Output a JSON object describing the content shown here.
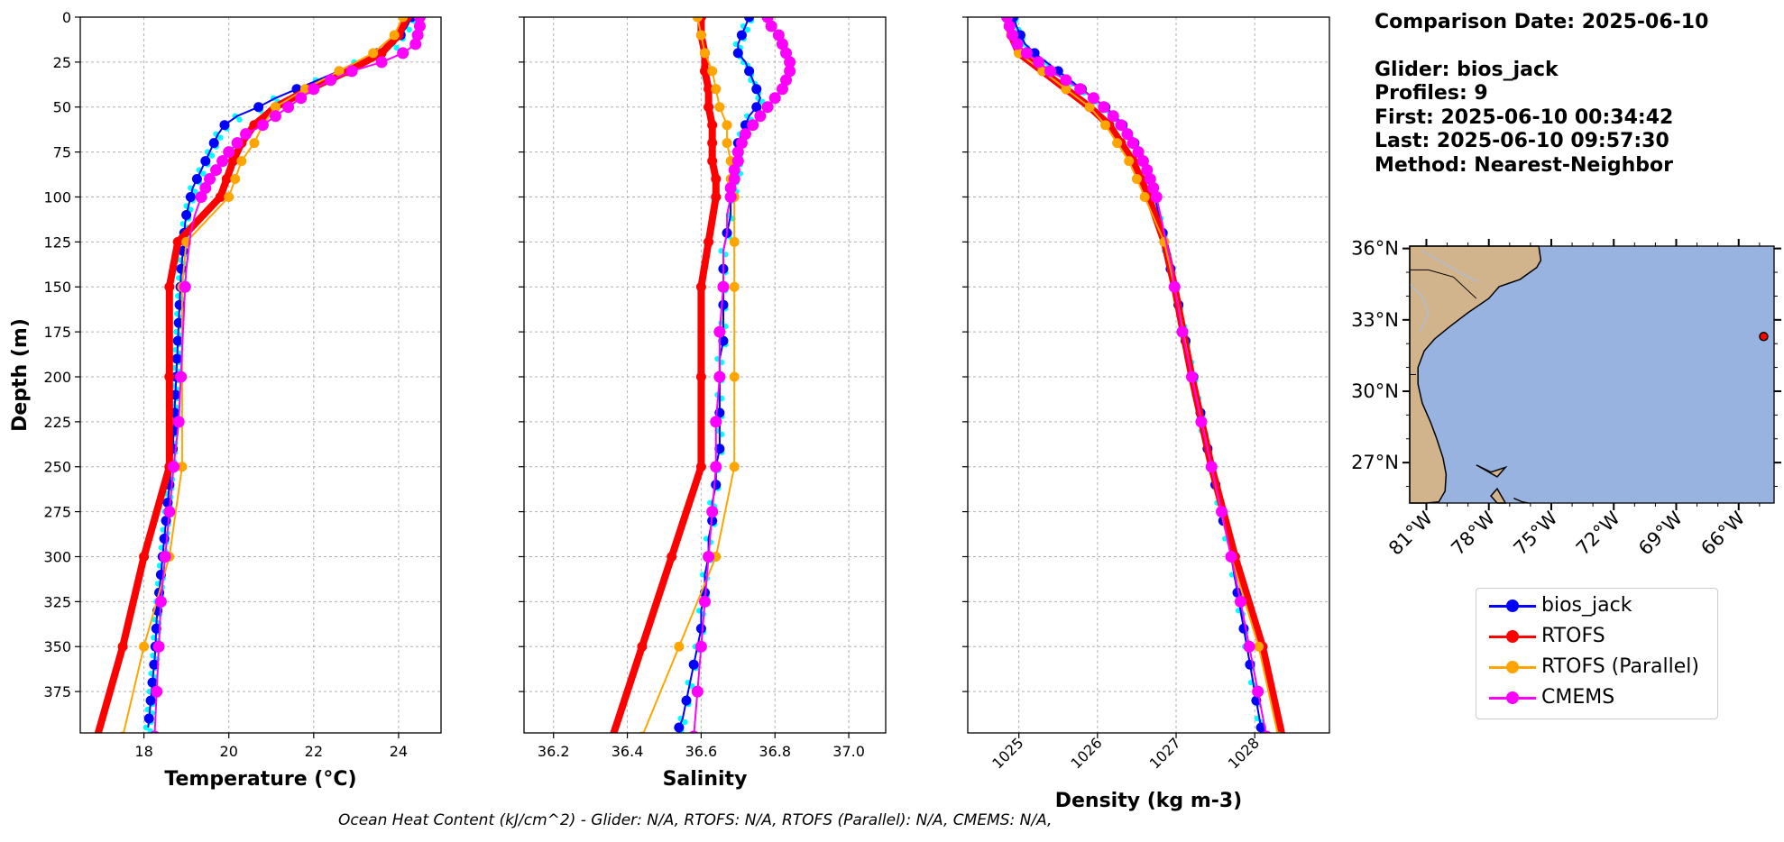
{
  "info": {
    "comparison_date": "Comparison Date: 2025-06-10",
    "glider": "Glider: bios_jack",
    "profiles": "Profiles: 9",
    "first": "First: 2025-06-10 00:34:42",
    "last": "Last: 2025-06-10 09:57:30",
    "method": "Method: Nearest-Neighbor"
  },
  "footer": "Ocean Heat Content (kJ/cm^2) - Glider: N/A,  RTOFS: N/A,  RTOFS (Parallel): N/A,  CMEMS: N/A,",
  "legend": [
    {
      "label": "bios_jack",
      "color": "#0000ff"
    },
    {
      "label": "RTOFS",
      "color": "#ff0000"
    },
    {
      "label": "RTOFS (Parallel)",
      "color": "#ffa500"
    },
    {
      "label": "CMEMS",
      "color": "#ff00ff"
    }
  ],
  "colors": {
    "glider": "#0000ff",
    "glider_raw": "#00ffff",
    "rtofs": "#ff0000",
    "rtofs_parallel": "#ffa500",
    "cmems": "#ff00ff",
    "ocean": "#99b3e0",
    "land": "#d2b48c"
  },
  "chart_data": [
    {
      "type": "line",
      "xlabel": "Temperature (°C)",
      "ylabel": "Depth (m)",
      "xlim": [
        16.5,
        25.0
      ],
      "ylim": [
        398,
        0
      ],
      "xticks": [
        18,
        20,
        22,
        24
      ],
      "yticks": [
        0,
        25,
        50,
        75,
        100,
        125,
        150,
        175,
        200,
        225,
        250,
        275,
        300,
        325,
        350,
        375
      ],
      "grid": true,
      "series": [
        {
          "name": "bios_jack",
          "depth": [
            0,
            5,
            10,
            15,
            20,
            25,
            30,
            35,
            40,
            45,
            50,
            55,
            60,
            65,
            70,
            75,
            80,
            85,
            90,
            95,
            100,
            105,
            110,
            115,
            120,
            125,
            130,
            135,
            140,
            145,
            150,
            155,
            160,
            165,
            170,
            175,
            180,
            185,
            190,
            195,
            200,
            205,
            210,
            215,
            220,
            225,
            230,
            235,
            240,
            245,
            250,
            255,
            260,
            265,
            270,
            275,
            280,
            285,
            290,
            295,
            300,
            305,
            310,
            315,
            320,
            325,
            330,
            335,
            340,
            345,
            350,
            355,
            360,
            365,
            370,
            375,
            380,
            385,
            390,
            395
          ],
          "values": [
            24.3,
            24.2,
            24.05,
            23.9,
            23.5,
            23.0,
            22.6,
            22.1,
            21.6,
            21.1,
            20.7,
            20.2,
            19.9,
            19.75,
            19.65,
            19.55,
            19.45,
            19.35,
            19.25,
            19.15,
            19.1,
            19.05,
            19.0,
            18.97,
            18.95,
            18.93,
            18.92,
            18.9,
            18.88,
            18.87,
            18.86,
            18.85,
            18.84,
            18.83,
            18.82,
            18.81,
            18.8,
            18.79,
            18.78,
            18.77,
            18.76,
            18.75,
            18.74,
            18.73,
            18.72,
            18.71,
            18.7,
            18.69,
            18.68,
            18.66,
            18.64,
            18.62,
            18.6,
            18.58,
            18.56,
            18.54,
            18.52,
            18.5,
            18.48,
            18.46,
            18.44,
            18.42,
            18.4,
            18.38,
            18.36,
            18.34,
            18.32,
            18.3,
            18.29,
            18.28,
            18.27,
            18.26,
            18.24,
            18.22,
            18.2,
            18.18,
            18.16,
            18.14,
            18.12,
            18.1
          ]
        },
        {
          "name": "RTOFS",
          "depth": [
            0,
            10,
            20,
            30,
            40,
            50,
            60,
            70,
            80,
            90,
            100,
            125,
            150,
            200,
            250,
            300,
            350,
            400
          ],
          "values": [
            24.2,
            24.0,
            23.6,
            22.8,
            21.9,
            21.1,
            20.6,
            20.3,
            20.1,
            19.95,
            19.8,
            18.8,
            18.6,
            18.6,
            18.6,
            18.0,
            17.5,
            16.9
          ]
        },
        {
          "name": "RTOFS (Parallel)",
          "depth": [
            0,
            10,
            20,
            30,
            40,
            50,
            60,
            70,
            80,
            90,
            100,
            125,
            150,
            200,
            250,
            300,
            350,
            400
          ],
          "values": [
            24.1,
            23.9,
            23.4,
            22.6,
            21.8,
            21.1,
            20.8,
            20.6,
            20.3,
            20.15,
            20.0,
            19.0,
            18.9,
            18.9,
            18.9,
            18.6,
            18.0,
            17.5
          ]
        },
        {
          "name": "CMEMS",
          "depth": [
            0,
            5,
            10,
            15,
            20,
            25,
            30,
            35,
            40,
            45,
            50,
            55,
            60,
            65,
            70,
            75,
            80,
            85,
            90,
            95,
            100,
            110,
            120,
            130,
            140,
            150,
            160,
            170,
            180,
            190,
            200,
            225,
            250,
            275,
            300,
            325,
            350,
            375,
            400
          ],
          "values": [
            24.5,
            24.5,
            24.45,
            24.4,
            24.1,
            23.6,
            22.9,
            22.4,
            22.0,
            21.7,
            21.4,
            21.1,
            20.8,
            20.4,
            20.2,
            20.0,
            19.85,
            19.7,
            19.55,
            19.45,
            19.35,
            19.2,
            19.1,
            19.05,
            19.0,
            18.97,
            18.95,
            18.93,
            18.91,
            18.89,
            18.87,
            18.82,
            18.7,
            18.6,
            18.5,
            18.4,
            18.35,
            18.3,
            18.25
          ]
        }
      ]
    },
    {
      "type": "line",
      "xlabel": "Salinity",
      "xlim": [
        36.12,
        37.1
      ],
      "ylim": [
        398,
        0
      ],
      "xticks": [
        36.2,
        36.4,
        36.6,
        36.8,
        37.0
      ],
      "grid": true,
      "series": [
        {
          "name": "bios_jack",
          "depth": [
            0,
            5,
            10,
            15,
            20,
            25,
            30,
            35,
            40,
            45,
            50,
            55,
            60,
            65,
            70,
            75,
            80,
            85,
            90,
            95,
            100,
            110,
            120,
            130,
            140,
            150,
            160,
            170,
            180,
            190,
            200,
            210,
            220,
            230,
            240,
            250,
            260,
            270,
            280,
            290,
            300,
            310,
            320,
            330,
            340,
            350,
            360,
            370,
            380,
            390,
            395
          ],
          "values": [
            36.73,
            36.72,
            36.71,
            36.7,
            36.7,
            36.72,
            36.73,
            36.74,
            36.75,
            36.76,
            36.75,
            36.73,
            36.72,
            36.71,
            36.7,
            36.7,
            36.7,
            36.7,
            36.69,
            36.69,
            36.68,
            36.68,
            36.67,
            36.66,
            36.66,
            36.66,
            36.66,
            36.66,
            36.66,
            36.65,
            36.65,
            36.65,
            36.65,
            36.65,
            36.65,
            36.64,
            36.64,
            36.63,
            36.63,
            36.62,
            36.62,
            36.61,
            36.61,
            36.6,
            36.6,
            36.59,
            36.58,
            36.57,
            36.56,
            36.55,
            36.54
          ]
        },
        {
          "name": "RTOFS",
          "depth": [
            0,
            10,
            20,
            30,
            40,
            50,
            60,
            70,
            80,
            90,
            100,
            125,
            150,
            200,
            250,
            300,
            350,
            400
          ],
          "values": [
            36.6,
            36.6,
            36.61,
            36.61,
            36.62,
            36.62,
            36.63,
            36.63,
            36.63,
            36.64,
            36.64,
            36.62,
            36.6,
            36.6,
            36.6,
            36.52,
            36.44,
            36.36
          ]
        },
        {
          "name": "RTOFS (Parallel)",
          "depth": [
            0,
            10,
            20,
            30,
            40,
            50,
            60,
            70,
            80,
            90,
            100,
            125,
            150,
            200,
            250,
            300,
            350,
            400
          ],
          "values": [
            36.59,
            36.6,
            36.61,
            36.63,
            36.64,
            36.65,
            36.67,
            36.67,
            36.68,
            36.68,
            36.69,
            36.69,
            36.69,
            36.69,
            36.69,
            36.64,
            36.54,
            36.44
          ]
        },
        {
          "name": "CMEMS",
          "depth": [
            0,
            5,
            10,
            15,
            20,
            25,
            30,
            35,
            40,
            45,
            50,
            55,
            60,
            65,
            70,
            75,
            80,
            85,
            90,
            95,
            100,
            110,
            120,
            130,
            140,
            150,
            175,
            200,
            225,
            250,
            275,
            300,
            325,
            350,
            375,
            400
          ],
          "values": [
            36.78,
            36.79,
            36.81,
            36.82,
            36.83,
            36.84,
            36.84,
            36.83,
            36.82,
            36.8,
            36.78,
            36.76,
            36.74,
            36.72,
            36.71,
            36.7,
            36.7,
            36.69,
            36.69,
            36.68,
            36.68,
            36.67,
            36.67,
            36.66,
            36.66,
            36.66,
            36.65,
            36.65,
            36.64,
            36.64,
            36.63,
            36.62,
            36.61,
            36.6,
            36.59,
            36.58
          ]
        }
      ]
    },
    {
      "type": "line",
      "xlabel": "Density (kg m-3)",
      "xlim": [
        1024.35,
        1028.95
      ],
      "ylim": [
        398,
        0
      ],
      "xticks": [
        1025,
        1026,
        1027,
        1028
      ],
      "grid": true,
      "series": [
        {
          "name": "bios_jack",
          "depth": [
            0,
            5,
            10,
            15,
            20,
            25,
            30,
            35,
            40,
            45,
            50,
            55,
            60,
            65,
            70,
            75,
            80,
            85,
            90,
            95,
            100,
            110,
            120,
            130,
            140,
            150,
            160,
            170,
            180,
            190,
            200,
            210,
            220,
            230,
            240,
            250,
            260,
            270,
            280,
            290,
            300,
            310,
            320,
            330,
            340,
            350,
            360,
            370,
            380,
            390,
            395
          ],
          "values": [
            1024.93,
            1024.97,
            1025.02,
            1025.08,
            1025.2,
            1025.35,
            1025.5,
            1025.65,
            1025.8,
            1025.95,
            1026.1,
            1026.22,
            1026.32,
            1026.4,
            1026.47,
            1026.53,
            1026.58,
            1026.63,
            1026.67,
            1026.7,
            1026.73,
            1026.78,
            1026.83,
            1026.88,
            1026.93,
            1026.98,
            1027.03,
            1027.08,
            1027.12,
            1027.17,
            1027.22,
            1027.26,
            1027.31,
            1027.35,
            1027.4,
            1027.45,
            1027.5,
            1027.55,
            1027.6,
            1027.65,
            1027.7,
            1027.74,
            1027.78,
            1027.82,
            1027.86,
            1027.9,
            1027.94,
            1027.98,
            1028.02,
            1028.06,
            1028.08
          ]
        },
        {
          "name": "RTOFS",
          "depth": [
            0,
            10,
            20,
            30,
            40,
            50,
            60,
            70,
            80,
            90,
            100,
            125,
            150,
            200,
            250,
            300,
            350,
            400
          ],
          "values": [
            1024.85,
            1024.9,
            1025.0,
            1025.3,
            1025.6,
            1025.9,
            1026.15,
            1026.3,
            1026.45,
            1026.55,
            1026.65,
            1026.85,
            1026.98,
            1027.2,
            1027.45,
            1027.75,
            1028.1,
            1028.35
          ]
        },
        {
          "name": "RTOFS (Parallel)",
          "depth": [
            0,
            10,
            20,
            30,
            40,
            50,
            60,
            70,
            80,
            90,
            100,
            125,
            150,
            200,
            250,
            300,
            350,
            400
          ],
          "values": [
            1024.85,
            1024.9,
            1025.0,
            1025.3,
            1025.6,
            1025.9,
            1026.1,
            1026.25,
            1026.4,
            1026.5,
            1026.6,
            1026.85,
            1026.98,
            1027.2,
            1027.45,
            1027.7,
            1028.05,
            1028.3
          ]
        },
        {
          "name": "CMEMS",
          "depth": [
            0,
            5,
            10,
            15,
            20,
            25,
            30,
            35,
            40,
            45,
            50,
            55,
            60,
            65,
            70,
            75,
            80,
            85,
            90,
            95,
            100,
            110,
            120,
            130,
            140,
            150,
            175,
            200,
            225,
            250,
            275,
            300,
            325,
            350,
            375,
            400
          ],
          "values": [
            1024.85,
            1024.88,
            1024.92,
            1024.98,
            1025.1,
            1025.25,
            1025.4,
            1025.6,
            1025.78,
            1025.95,
            1026.08,
            1026.2,
            1026.3,
            1026.38,
            1026.45,
            1026.52,
            1026.58,
            1026.63,
            1026.67,
            1026.71,
            1026.75,
            1026.8,
            1026.85,
            1026.9,
            1026.95,
            1026.98,
            1027.08,
            1027.2,
            1027.32,
            1027.45,
            1027.58,
            1027.7,
            1027.82,
            1027.93,
            1028.04,
            1028.15
          ]
        }
      ]
    },
    {
      "type": "map",
      "lon_ticks": [
        "81°W",
        "78°W",
        "75°W",
        "72°W",
        "69°W",
        "66°W"
      ],
      "lat_ticks": [
        "36°N",
        "33°N",
        "30°N",
        "27°N"
      ],
      "lon_range": [
        -81.8,
        -64.3
      ],
      "lat_range": [
        25.3,
        36.1
      ],
      "glider_position": {
        "lon": -64.8,
        "lat": 32.3
      }
    }
  ]
}
